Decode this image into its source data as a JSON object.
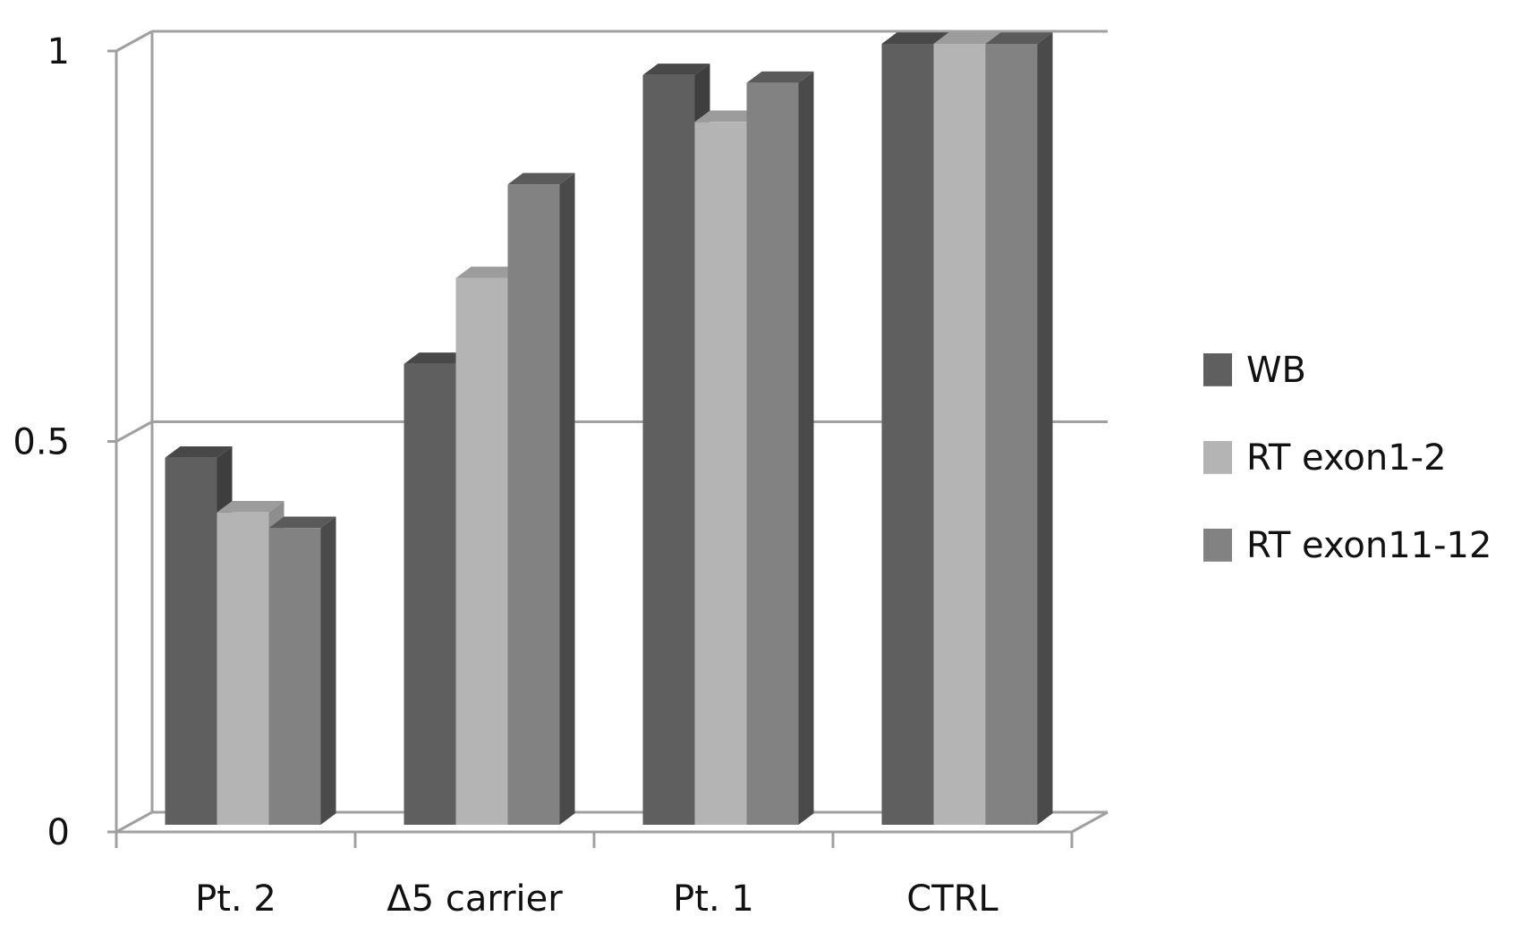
{
  "chart_data": {
    "type": "bar",
    "categories": [
      "Pt. 2",
      "Δ5 carrier",
      "Pt. 1",
      "CTRL"
    ],
    "series": [
      {
        "name": "WB",
        "values": [
          0.47,
          0.59,
          0.96,
          1.0
        ],
        "color": "#5f5f5f",
        "side": "#3e3e3e",
        "top": "#484848"
      },
      {
        "name": "RT exon1-2",
        "values": [
          0.4,
          0.7,
          0.9,
          1.0
        ],
        "color": "#b4b4b4",
        "side": "#8e8e8e",
        "top": "#9c9c9c"
      },
      {
        "name": "RT exon11-12",
        "values": [
          0.38,
          0.82,
          0.95,
          1.0
        ],
        "color": "#828282",
        "side": "#4a4a4a",
        "top": "#5a5a5a"
      }
    ],
    "yticks": [
      "0",
      "0.5",
      "1"
    ],
    "ylim": [
      0,
      1
    ],
    "grid": true,
    "legend_position": "right",
    "title": "",
    "xlabel": "",
    "ylabel": ""
  }
}
